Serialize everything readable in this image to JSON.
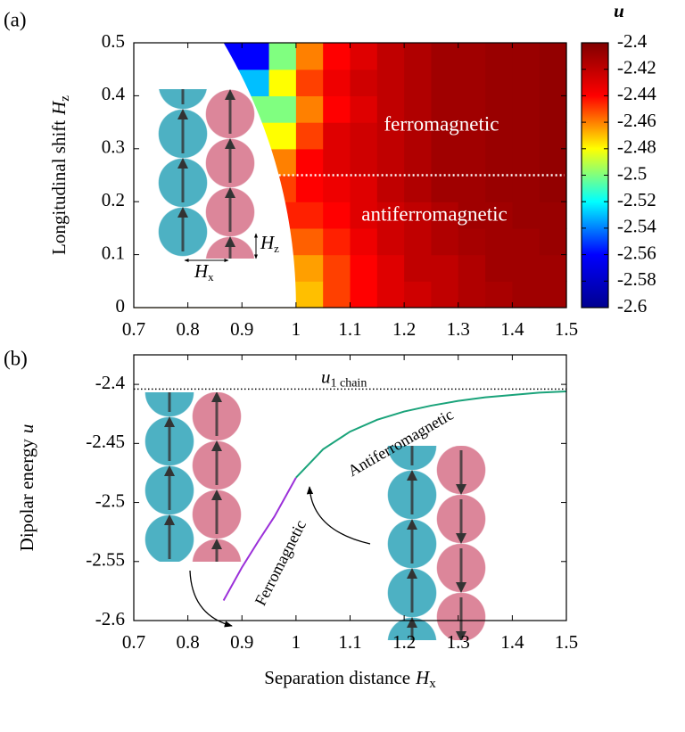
{
  "chart_data": [
    {
      "type": "heatmap",
      "panel_label": "(a)",
      "ylabel": {
        "text": "Longitudinal shift",
        "symbol": "H",
        "sub": "z"
      },
      "xlim": [
        0.7,
        1.5
      ],
      "ylim": [
        0,
        0.5
      ],
      "xticks": [
        0.7,
        0.8,
        0.9,
        1,
        1.1,
        1.2,
        1.3,
        1.4,
        1.5
      ],
      "yticks": [
        0,
        0.1,
        0.2,
        0.3,
        0.4,
        0.5
      ],
      "x": [
        0.725,
        0.775,
        0.825,
        0.875,
        0.925,
        0.975,
        1.025,
        1.075,
        1.125,
        1.175,
        1.225,
        1.275,
        1.325,
        1.375,
        1.425,
        1.475
      ],
      "y": [
        0.025,
        0.075,
        0.125,
        0.175,
        0.225,
        0.275,
        0.325,
        0.375,
        0.425,
        0.475
      ],
      "z": [
        [
          null,
          null,
          null,
          null,
          null,
          null,
          -2.47,
          -2.45,
          -2.44,
          -2.43,
          -2.425,
          -2.42,
          -2.415,
          -2.413,
          -2.41,
          -2.41
        ],
        [
          null,
          null,
          null,
          null,
          null,
          null,
          -2.465,
          -2.45,
          -2.44,
          -2.43,
          -2.42,
          -2.42,
          -2.415,
          -2.41,
          -2.41,
          -2.41
        ],
        [
          null,
          null,
          null,
          null,
          null,
          null,
          -2.455,
          -2.445,
          -2.435,
          -2.425,
          -2.42,
          -2.415,
          -2.412,
          -2.41,
          -2.41,
          -2.408
        ],
        [
          null,
          null,
          null,
          null,
          null,
          null,
          -2.445,
          -2.44,
          -2.43,
          -2.425,
          -2.42,
          -2.415,
          -2.41,
          -2.41,
          -2.408,
          -2.408
        ],
        [
          null,
          null,
          null,
          null,
          null,
          -2.45,
          -2.44,
          -2.435,
          -2.43,
          -2.42,
          -2.415,
          -2.41,
          -2.41,
          -2.408,
          -2.408,
          -2.406
        ],
        [
          null,
          null,
          null,
          null,
          null,
          -2.46,
          -2.44,
          -2.43,
          -2.425,
          -2.42,
          -2.415,
          -2.41,
          -2.41,
          -2.408,
          -2.408,
          -2.406
        ],
        [
          null,
          null,
          null,
          null,
          null,
          -2.48,
          -2.45,
          -2.43,
          -2.425,
          -2.42,
          -2.415,
          -2.41,
          -2.41,
          -2.408,
          -2.408,
          -2.406
        ],
        [
          null,
          null,
          null,
          null,
          null,
          -2.5,
          -2.46,
          -2.44,
          -2.43,
          -2.42,
          -2.415,
          -2.41,
          -2.41,
          -2.408,
          -2.408,
          -2.406
        ],
        [
          null,
          null,
          null,
          null,
          -2.53,
          -2.48,
          -2.45,
          -2.435,
          -2.425,
          -2.42,
          -2.415,
          -2.41,
          -2.41,
          -2.408,
          -2.408,
          -2.406
        ],
        [
          null,
          null,
          null,
          null,
          -2.56,
          -2.5,
          -2.46,
          -2.44,
          -2.43,
          -2.42,
          -2.415,
          -2.41,
          -2.41,
          -2.408,
          -2.408,
          -2.406
        ]
      ],
      "colormap": [
        "#00008f",
        "#0000ff",
        "#00ffff",
        "#ffff00",
        "#ff0000",
        "#800000"
      ],
      "colorbar": {
        "label": "u",
        "lim": [
          -2.6,
          -2.4
        ],
        "ticks": [
          -2.4,
          -2.42,
          -2.44,
          -2.46,
          -2.48,
          -2.5,
          -2.52,
          -2.54,
          -2.56,
          -2.58,
          -2.6
        ]
      },
      "phase_boundary_y": 0.25,
      "region_labels": [
        "ferromagnetic",
        "antiferromagnetic"
      ],
      "inset_labels": [
        {
          "symbol": "H",
          "sub": "z"
        },
        {
          "symbol": "H",
          "sub": "x"
        }
      ]
    },
    {
      "type": "line",
      "panel_label": "(b)",
      "xlabel": {
        "text": "Separation distance",
        "symbol": "H",
        "sub": "x"
      },
      "ylabel": {
        "text": "Dipolar energy",
        "symbol": "u"
      },
      "xlim": [
        0.7,
        1.5
      ],
      "ylim": [
        -2.6,
        -2.375
      ],
      "xticks": [
        0.7,
        0.8,
        0.9,
        1,
        1.1,
        1.2,
        1.3,
        1.4,
        1.5
      ],
      "yticks": [
        -2.6,
        -2.55,
        -2.5,
        -2.45,
        -2.4
      ],
      "series": [
        {
          "name": "Ferromagnetic",
          "color": "#9b30d9",
          "x": [
            0.866,
            0.9,
            0.93,
            0.96,
            1.0
          ],
          "values": [
            -2.583,
            -2.555,
            -2.533,
            -2.512,
            -2.479
          ]
        },
        {
          "name": "Antiferromagnetic",
          "color": "#1aa37a",
          "x": [
            1.0,
            1.05,
            1.1,
            1.15,
            1.2,
            1.25,
            1.3,
            1.35,
            1.4,
            1.45,
            1.5
          ],
          "values": [
            -2.479,
            -2.455,
            -2.44,
            -2.43,
            -2.423,
            -2.418,
            -2.414,
            -2.411,
            -2.409,
            -2.407,
            -2.406
          ]
        }
      ],
      "reference_line": {
        "value": -2.404,
        "symbol": "u",
        "sub": "1 chain"
      }
    }
  ]
}
